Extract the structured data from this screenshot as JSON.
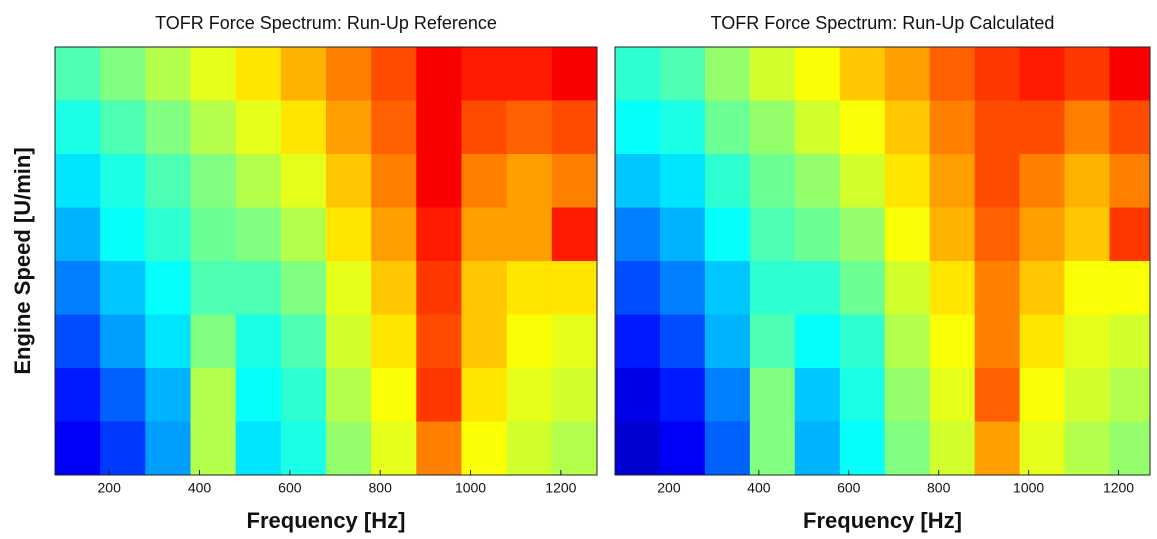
{
  "chart_data": [
    {
      "type": "heatmap",
      "title": "TOFR Force Spectrum: Run-Up Reference",
      "xlabel": "Frequency [Hz]",
      "ylabel": "Engine Speed [U/min]",
      "xlim": [
        80,
        1280
      ],
      "xticks": [
        200,
        400,
        600,
        800,
        1000,
        1200
      ],
      "xbins": [
        80,
        180,
        280,
        380,
        480,
        580,
        680,
        780,
        880,
        980,
        1080,
        1180,
        1280
      ],
      "clim": [
        0,
        1
      ],
      "colormap": "jet",
      "z": [
        [
          0.45,
          0.5,
          0.55,
          0.6,
          0.65,
          0.7,
          0.75,
          0.8,
          0.88,
          0.85,
          0.85,
          0.88
        ],
        [
          0.4,
          0.45,
          0.5,
          0.55,
          0.6,
          0.65,
          0.72,
          0.78,
          0.88,
          0.8,
          0.78,
          0.8
        ],
        [
          0.35,
          0.4,
          0.45,
          0.5,
          0.55,
          0.6,
          0.68,
          0.75,
          0.88,
          0.75,
          0.72,
          0.75
        ],
        [
          0.3,
          0.38,
          0.42,
          0.48,
          0.5,
          0.55,
          0.65,
          0.72,
          0.85,
          0.72,
          0.72,
          0.85
        ],
        [
          0.25,
          0.32,
          0.38,
          0.45,
          0.45,
          0.5,
          0.6,
          0.68,
          0.82,
          0.68,
          0.65,
          0.65
        ],
        [
          0.2,
          0.28,
          0.35,
          0.5,
          0.4,
          0.45,
          0.58,
          0.65,
          0.8,
          0.68,
          0.62,
          0.6
        ],
        [
          0.15,
          0.22,
          0.3,
          0.55,
          0.38,
          0.42,
          0.55,
          0.62,
          0.82,
          0.65,
          0.6,
          0.58
        ],
        [
          0.12,
          0.18,
          0.28,
          0.55,
          0.35,
          0.4,
          0.52,
          0.6,
          0.75,
          0.62,
          0.58,
          0.55
        ]
      ]
    },
    {
      "type": "heatmap",
      "title": "TOFR Force Spectrum: Run-Up Calculated",
      "xlabel": "Frequency [Hz]",
      "xlim": [
        80,
        1270
      ],
      "xticks": [
        200,
        400,
        600,
        800,
        1000,
        1200
      ],
      "xbins": [
        80,
        180,
        280,
        380,
        480,
        580,
        680,
        780,
        880,
        980,
        1080,
        1180,
        1270
      ],
      "clim": [
        0,
        1
      ],
      "colormap": "jet",
      "z": [
        [
          0.42,
          0.45,
          0.52,
          0.58,
          0.62,
          0.68,
          0.72,
          0.78,
          0.82,
          0.85,
          0.82,
          0.88
        ],
        [
          0.38,
          0.4,
          0.48,
          0.52,
          0.58,
          0.62,
          0.68,
          0.75,
          0.8,
          0.8,
          0.75,
          0.8
        ],
        [
          0.32,
          0.35,
          0.42,
          0.48,
          0.52,
          0.58,
          0.65,
          0.72,
          0.8,
          0.75,
          0.7,
          0.75
        ],
        [
          0.25,
          0.3,
          0.38,
          0.45,
          0.48,
          0.52,
          0.62,
          0.7,
          0.78,
          0.72,
          0.68,
          0.82
        ],
        [
          0.2,
          0.25,
          0.32,
          0.42,
          0.42,
          0.48,
          0.58,
          0.65,
          0.75,
          0.68,
          0.62,
          0.62
        ],
        [
          0.15,
          0.2,
          0.3,
          0.45,
          0.38,
          0.42,
          0.55,
          0.62,
          0.75,
          0.65,
          0.6,
          0.58
        ],
        [
          0.1,
          0.15,
          0.25,
          0.5,
          0.32,
          0.4,
          0.52,
          0.6,
          0.78,
          0.62,
          0.58,
          0.55
        ],
        [
          0.08,
          0.12,
          0.22,
          0.5,
          0.3,
          0.38,
          0.5,
          0.58,
          0.72,
          0.6,
          0.55,
          0.52
        ]
      ]
    }
  ]
}
